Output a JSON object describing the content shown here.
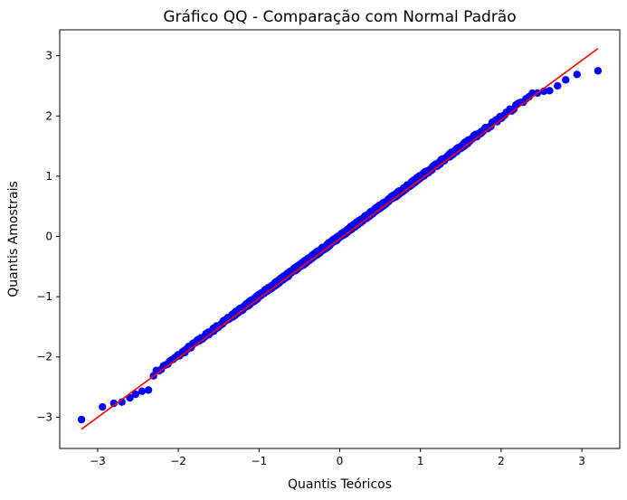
{
  "chart_data": {
    "type": "scatter",
    "title": "Gráfico QQ - Comparação com Normal Padrão",
    "xlabel": "Quantis Teóricos",
    "ylabel": "Quantis Amostrais",
    "xlim": [
      -3.47,
      3.47
    ],
    "ylim": [
      -3.52,
      3.43
    ],
    "xticks": [
      -3,
      -2,
      -1,
      0,
      1,
      2,
      3
    ],
    "yticks": [
      -3,
      -2,
      -1,
      0,
      1,
      2,
      3
    ],
    "grid": false,
    "point_color": "#0000ff",
    "line_color": "#ff0000",
    "series": [
      {
        "kind": "points",
        "n": 1000,
        "slope": 0.99,
        "intercept": 0.0,
        "tail_points": [
          [
            -3.2,
            -3.04
          ],
          [
            -2.94,
            -2.83
          ],
          [
            -2.8,
            -2.77
          ],
          [
            -2.7,
            -2.75
          ],
          [
            -2.6,
            -2.68
          ],
          [
            -2.53,
            -2.62
          ],
          [
            -2.45,
            -2.57
          ],
          [
            -2.37,
            -2.55
          ],
          [
            2.45,
            2.38
          ],
          [
            2.53,
            2.41
          ],
          [
            2.6,
            2.42
          ],
          [
            2.7,
            2.5
          ],
          [
            2.8,
            2.6
          ],
          [
            2.94,
            2.69
          ],
          [
            3.2,
            2.75
          ]
        ]
      },
      {
        "kind": "line",
        "x": [
          -3.2,
          3.2
        ],
        "y": [
          -3.2,
          3.12
        ]
      }
    ]
  }
}
